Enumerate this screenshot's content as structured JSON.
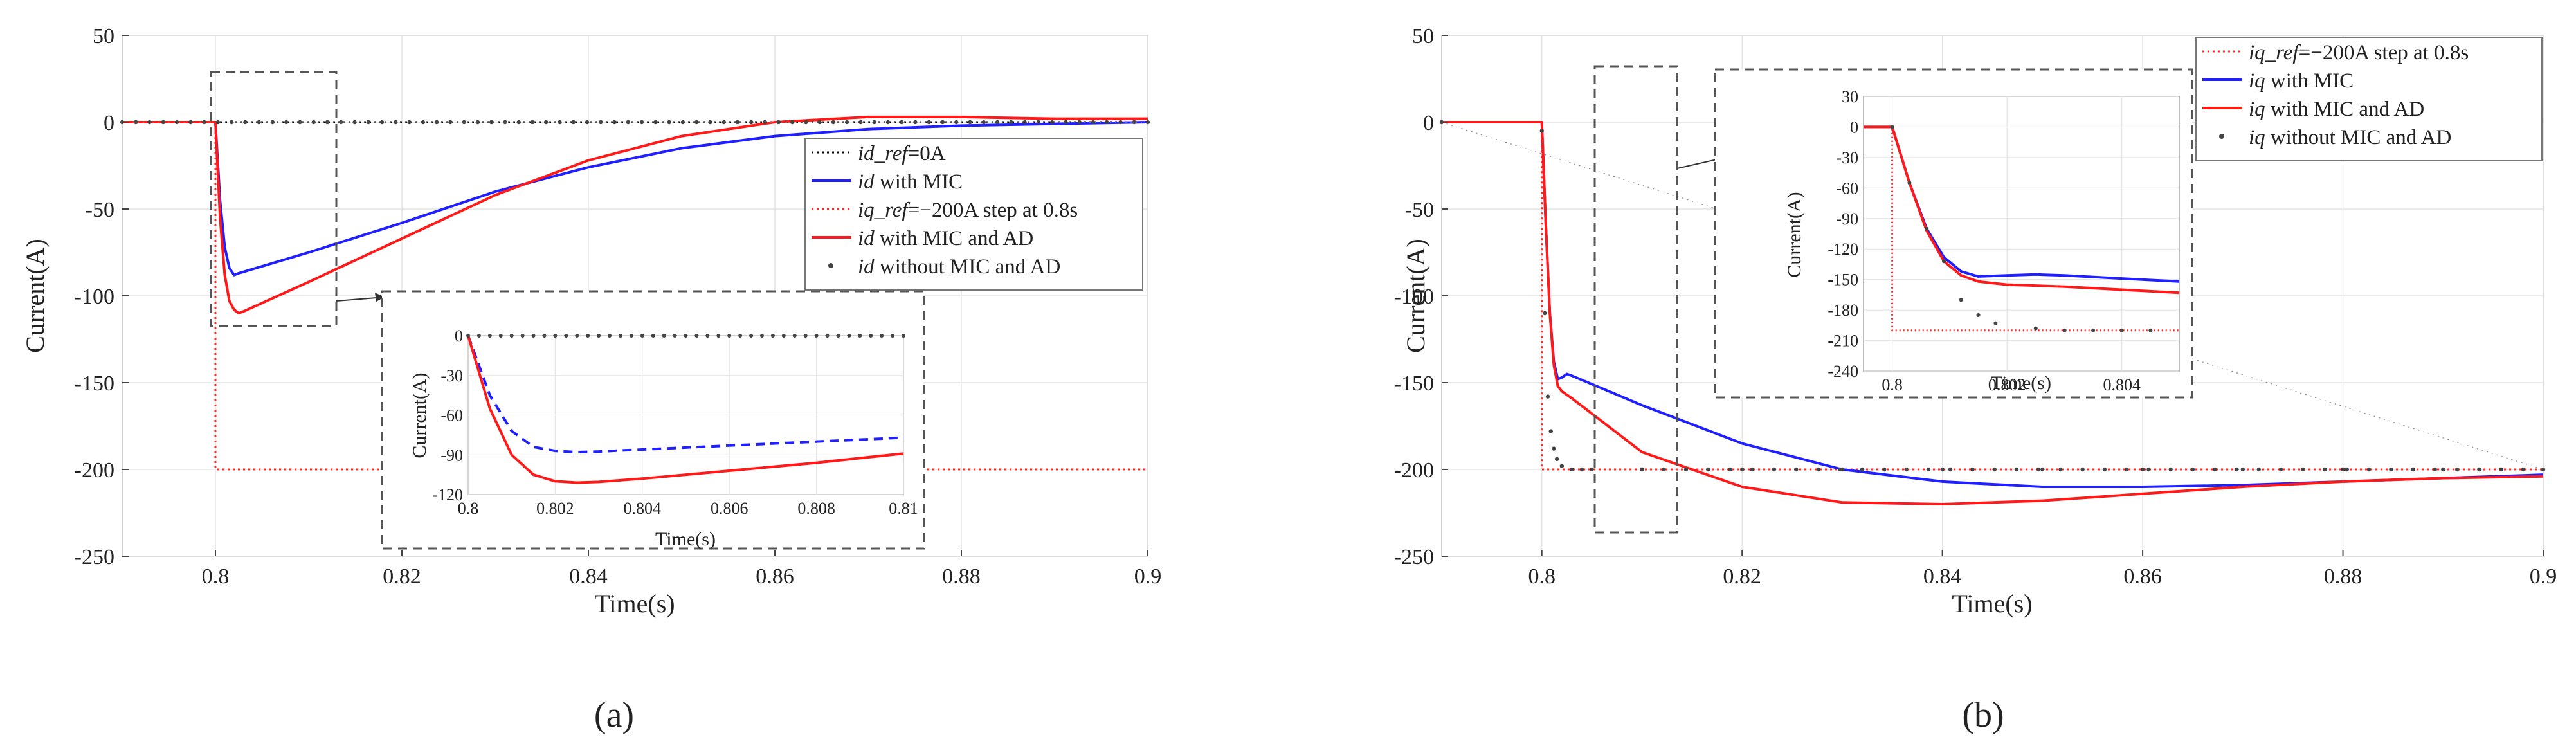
{
  "figure": {
    "panels": [
      "(a)",
      "(b)"
    ]
  },
  "chart_data": [
    {
      "type": "line",
      "panel": "(a)",
      "xlabel": "Time(s)",
      "ylabel": "Current(A)",
      "xlim": [
        0.79,
        0.9
      ],
      "ylim": [
        -250,
        50
      ],
      "xticks": [
        0.8,
        0.82,
        0.84,
        0.86,
        0.88,
        0.9
      ],
      "xtick_labels": [
        "0.8",
        "0.82",
        "0.84",
        "0.86",
        "0.88",
        "0.9"
      ],
      "yticks": [
        50,
        0,
        -50,
        -100,
        -150,
        -200,
        -250
      ],
      "ytick_labels": [
        "50",
        "0",
        "-50",
        "-100",
        "-150",
        "-200",
        "-250"
      ],
      "grid": true,
      "legend_position": "right",
      "series": [
        {
          "name": "id_ref=0A",
          "legend_prefix": "id_ref",
          "legend_suffix": "=0A",
          "color": "#000000",
          "style": "dotted",
          "x": [
            0.79,
            0.9
          ],
          "y": [
            0,
            0
          ]
        },
        {
          "name": "id with MIC",
          "legend_prefix": "id",
          "legend_suffix": " with MIC",
          "color": "#1f1fff",
          "style": "solid",
          "x": [
            0.79,
            0.8,
            0.8005,
            0.801,
            0.8015,
            0.802,
            0.8025,
            0.81,
            0.82,
            0.83,
            0.84,
            0.85,
            0.86,
            0.87,
            0.88,
            0.89,
            0.9
          ],
          "y": [
            0,
            0,
            -45,
            -72,
            -84,
            -88,
            -87,
            -75,
            -58,
            -40,
            -26,
            -15,
            -8,
            -4,
            -2,
            -1,
            0
          ]
        },
        {
          "name": "iq_ref=-200A step at 0.8s",
          "legend_prefix": "iq_ref",
          "legend_suffix": "=−200A step at 0.8s",
          "color": "#ff2a2a",
          "style": "dotted",
          "x": [
            0.79,
            0.8,
            0.8,
            0.9
          ],
          "y": [
            0,
            0,
            -200,
            -200
          ]
        },
        {
          "name": "id with MIC and AD",
          "legend_prefix": "id",
          "legend_suffix": " with MIC and AD",
          "color": "#ff1a1a",
          "style": "solid",
          "x": [
            0.79,
            0.8,
            0.8005,
            0.801,
            0.8015,
            0.802,
            0.8025,
            0.803,
            0.81,
            0.82,
            0.83,
            0.84,
            0.85,
            0.86,
            0.87,
            0.88,
            0.89,
            0.9
          ],
          "y": [
            0,
            0,
            -55,
            -88,
            -103,
            -108,
            -110,
            -109,
            -92,
            -67,
            -42,
            -22,
            -8,
            0,
            3,
            3,
            2,
            2
          ]
        },
        {
          "name": "id without MIC and AD",
          "legend_prefix": "id",
          "legend_suffix": " without MIC and AD",
          "color": "#444444",
          "style": "markers",
          "x": [
            0.79,
            0.9
          ],
          "y": [
            0,
            0
          ]
        }
      ],
      "inset": {
        "xlabel": "Time(s)",
        "ylabel": "Current(A)",
        "xlim": [
          0.8,
          0.81
        ],
        "ylim": [
          -120,
          0
        ],
        "xticks": [
          0.8,
          0.802,
          0.804,
          0.806,
          0.808,
          0.81
        ],
        "xtick_labels": [
          "0.8",
          "0.802",
          "0.804",
          "0.806",
          "0.808",
          "0.81"
        ],
        "yticks": [
          0,
          -30,
          -60,
          -90,
          -120
        ],
        "ytick_labels": [
          "0",
          "-30",
          "-60",
          "-90",
          "-120"
        ],
        "series": [
          {
            "name": "id with MIC",
            "color": "#1f1fff",
            "style": "dashed",
            "x": [
              0.8,
              0.8005,
              0.801,
              0.8015,
              0.802,
              0.8025,
              0.803,
              0.804,
              0.806,
              0.808,
              0.81
            ],
            "y": [
              0,
              -45,
              -72,
              -84,
              -87,
              -88,
              -87.5,
              -86,
              -83,
              -80,
              -77
            ]
          },
          {
            "name": "id with MIC and AD",
            "color": "#ff1a1a",
            "style": "solid",
            "x": [
              0.8,
              0.8005,
              0.801,
              0.8015,
              0.802,
              0.8025,
              0.803,
              0.804,
              0.806,
              0.808,
              0.81
            ],
            "y": [
              0,
              -55,
              -90,
              -105,
              -110,
              -111,
              -110.5,
              -108,
              -102,
              -96,
              -89
            ]
          },
          {
            "name": "id without MIC and AD",
            "color": "#444444",
            "style": "markers",
            "x": [
              0.8,
              0.81
            ],
            "y": [
              0,
              0
            ]
          }
        ]
      }
    },
    {
      "type": "line",
      "panel": "(b)",
      "xlabel": "Time(s)",
      "ylabel": "Current(A)",
      "xlim": [
        0.79,
        0.9
      ],
      "ylim": [
        -250,
        50
      ],
      "xticks": [
        0.8,
        0.82,
        0.84,
        0.86,
        0.88,
        0.9
      ],
      "xtick_labels": [
        "0.8",
        "0.82",
        "0.84",
        "0.86",
        "0.88",
        "0.9"
      ],
      "yticks": [
        50,
        0,
        -50,
        -100,
        -150,
        -200,
        -250
      ],
      "ytick_labels": [
        "50",
        "0",
        "-50",
        "-100",
        "-150",
        "-200",
        "-250"
      ],
      "grid": true,
      "legend_position": "top-right",
      "series": [
        {
          "name": "iq_ref=-200A step at 0.8s",
          "legend_prefix": "iq_ref",
          "legend_suffix": "=−200A step at 0.8s",
          "color": "#ff2a2a",
          "style": "dotted",
          "x": [
            0.79,
            0.8,
            0.8,
            0.9
          ],
          "y": [
            0,
            0,
            -200,
            -200
          ]
        },
        {
          "name": "iq with MIC",
          "legend_prefix": "iq",
          "legend_suffix": " with MIC",
          "color": "#1f1fff",
          "style": "solid",
          "x": [
            0.79,
            0.8,
            0.8004,
            0.8008,
            0.8012,
            0.8016,
            0.802,
            0.8025,
            0.803,
            0.81,
            0.82,
            0.83,
            0.84,
            0.85,
            0.86,
            0.87,
            0.88,
            0.89,
            0.9
          ],
          "y": [
            0,
            0,
            -60,
            -110,
            -138,
            -148,
            -147,
            -145,
            -146,
            -163,
            -185,
            -200,
            -207,
            -210,
            -210,
            -209,
            -207,
            -205,
            -203
          ]
        },
        {
          "name": "iq with MIC and AD",
          "legend_prefix": "iq",
          "legend_suffix": " with MIC and AD",
          "color": "#ff1a1a",
          "style": "solid",
          "x": [
            0.79,
            0.8,
            0.8004,
            0.8008,
            0.8012,
            0.8016,
            0.802,
            0.803,
            0.81,
            0.82,
            0.83,
            0.84,
            0.85,
            0.86,
            0.87,
            0.88,
            0.89,
            0.9
          ],
          "y": [
            0,
            0,
            -60,
            -110,
            -140,
            -152,
            -155,
            -159,
            -190,
            -210,
            -219,
            -220,
            -218,
            -214,
            -210,
            -207,
            -205,
            -204
          ]
        },
        {
          "name": "iq without MIC and AD",
          "legend_prefix": "iq",
          "legend_suffix": " without MIC and AD",
          "color": "#444444",
          "style": "markers",
          "x": [
            0.79,
            0.8,
            0.8003,
            0.8006,
            0.8009,
            0.8012,
            0.8015,
            0.802,
            0.803,
            0.804,
            0.805,
            0.81,
            0.82,
            0.83,
            0.84,
            0.85,
            0.86,
            0.87,
            0.88,
            0.89,
            0.9
          ],
          "y": [
            0,
            -5,
            -110,
            -158,
            -178,
            -188,
            -194,
            -198,
            -200,
            -200,
            -200,
            -200,
            -200,
            -200,
            -200,
            -200,
            -200,
            -200,
            -200,
            -200,
            -200
          ]
        }
      ],
      "inset": {
        "xlabel": "Time(s)",
        "ylabel": "Current(A)",
        "xlim": [
          0.7995,
          0.805
        ],
        "ylim": [
          -240,
          30
        ],
        "xticks": [
          0.8,
          0.802,
          0.804
        ],
        "xtick_labels": [
          "0.8",
          "0.802",
          "0.804"
        ],
        "yticks": [
          30,
          0,
          -30,
          -60,
          -90,
          -120,
          -150,
          -180,
          -210,
          -240
        ],
        "ytick_labels": [
          "30",
          "0",
          "-30",
          "-60",
          "-90",
          "-120",
          "-150",
          "-180",
          "-210",
          "-240"
        ],
        "series": [
          {
            "name": "iq_ref",
            "color": "#ff2a2a",
            "style": "dotted",
            "x": [
              0.7995,
              0.8,
              0.8,
              0.805
            ],
            "y": [
              0,
              0,
              -200,
              -200
            ]
          },
          {
            "name": "iq with MIC",
            "color": "#1f1fff",
            "style": "solid",
            "x": [
              0.7995,
              0.8,
              0.8003,
              0.8006,
              0.8009,
              0.8012,
              0.8015,
              0.802,
              0.8025,
              0.803,
              0.804,
              0.805
            ],
            "y": [
              0,
              0,
              -55,
              -100,
              -128,
              -142,
              -147,
              -146,
              -145,
              -146,
              -149,
              -152
            ]
          },
          {
            "name": "iq with MIC and AD",
            "color": "#ff1a1a",
            "style": "solid",
            "x": [
              0.7995,
              0.8,
              0.8003,
              0.8006,
              0.8009,
              0.8012,
              0.8015,
              0.802,
              0.803,
              0.804,
              0.805
            ],
            "y": [
              0,
              0,
              -55,
              -102,
              -132,
              -146,
              -152,
              -155,
              -157,
              -160,
              -163
            ]
          },
          {
            "name": "iq without MIC and AD",
            "color": "#444444",
            "style": "markers",
            "x": [
              0.8,
              0.8003,
              0.8006,
              0.8009,
              0.8012,
              0.8015,
              0.8018,
              0.8025,
              0.803,
              0.8035,
              0.804,
              0.8045
            ],
            "y": [
              0,
              -55,
              -100,
              -132,
              -170,
              -185,
              -193,
              -198,
              -200,
              -200,
              -200,
              -200
            ]
          }
        ]
      }
    }
  ]
}
